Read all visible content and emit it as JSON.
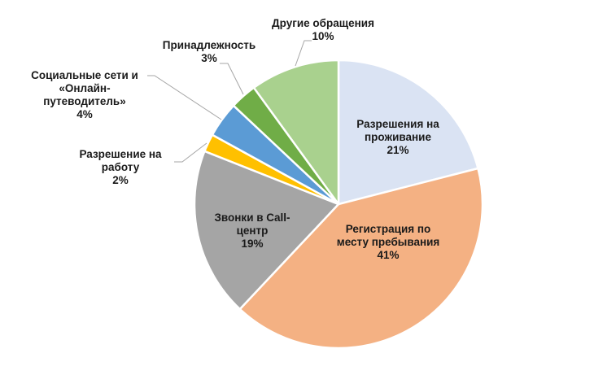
{
  "chart_data": {
    "type": "pie",
    "title": "",
    "start_angle_deg": 0,
    "direction": "clockwise",
    "center": [
      416,
      251
    ],
    "radius": 177,
    "slices": [
      {
        "label": "Разрешения на проживание",
        "value": 21,
        "pct_label": "21%",
        "color": "#DAE3F3",
        "lines": [
          "Разрешения на",
          "проживание",
          "21%"
        ]
      },
      {
        "label": "Регистрация по месту пребывания",
        "value": 41,
        "pct_label": "41%",
        "color": "#F4B183",
        "lines": [
          "Регистрация по",
          "месту пребывания",
          "41%"
        ]
      },
      {
        "label": "Звонки в Call-центр",
        "value": 19,
        "pct_label": "19%",
        "color": "#A5A5A5",
        "lines": [
          "Звонки в Call-",
          "центр",
          "19%"
        ]
      },
      {
        "label": "Разрешение на работу",
        "value": 2,
        "pct_label": "2%",
        "color": "#FFC000",
        "lines": [
          "Разрешение на",
          "работу",
          "2%"
        ]
      },
      {
        "label": "Социальные сети и «Онлайн-путеводитель»",
        "value": 4,
        "pct_label": "4%",
        "color": "#5B9BD5",
        "lines": [
          "Социальные сети и",
          "«Онлайн-",
          "путеводитель»",
          "4%"
        ]
      },
      {
        "label": "Принадлежность",
        "value": 3,
        "pct_label": "3%",
        "color": "#70AD47",
        "lines": [
          "Принадлежность",
          "3%"
        ]
      },
      {
        "label": "Другие обращения",
        "value": 10,
        "pct_label": "10%",
        "color": "#A9D18E",
        "lines": [
          "Другие обращения",
          "10%"
        ]
      }
    ],
    "legend": "none",
    "data_labels": "category name and percentage"
  },
  "labels": {
    "s0": {
      "line1": "Разрешения на",
      "line2": "проживание",
      "line3": "21%"
    },
    "s1": {
      "line1": "Регистрация по",
      "line2": "месту пребывания",
      "line3": "41%"
    },
    "s2": {
      "line1": "Звонки в Call-",
      "line2": "центр",
      "line3": "19%"
    },
    "s3": {
      "line1": "Разрешение на",
      "line2": "работу",
      "line3": "2%"
    },
    "s4": {
      "line1": "Социальные сети и",
      "line2": "«Онлайн-",
      "line3": "путеводитель»",
      "line4": "4%"
    },
    "s5": {
      "line1": "Принадлежность",
      "line2": "3%"
    },
    "s6": {
      "line1": "Другие обращения",
      "line2": "10%"
    }
  }
}
